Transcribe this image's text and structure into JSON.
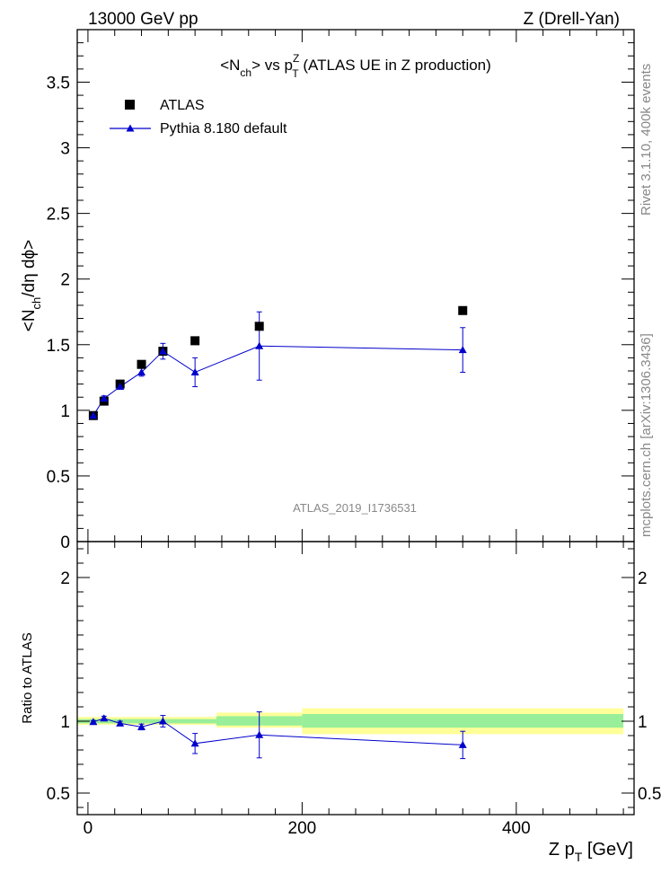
{
  "header": {
    "left": "13000 GeV pp",
    "right": "Z (Drell-Yan)"
  },
  "side_labels": {
    "rivet": "Rivet 3.1.10,  400k events",
    "mcplots": "mcplots.cern.ch [arXiv:1306.3436]"
  },
  "watermark": "ATLAS_2019_I1736531",
  "colors": {
    "data_marker": "#000000",
    "mc_line": "#0000cc",
    "band_outer": "#ffff99",
    "band_inner": "#99ee99"
  },
  "chart_data": [
    {
      "type": "scatter",
      "title_parts": {
        "a": "<N",
        "a_sub": "ch",
        "b": "> vs p",
        "b_sup": "Z",
        "b_sub": "T",
        "c": " (ATLAS UE in Z production)"
      },
      "ylabel_parts": {
        "a": "<N",
        "a_sub": "ch",
        "b": "/dη dϕ>"
      },
      "xlim": [
        -10,
        510
      ],
      "ylim": [
        0,
        3.9
      ],
      "ytick_labels": [
        "0",
        "0.5",
        "1",
        "1.5",
        "2",
        "2.5",
        "3",
        "3.5"
      ],
      "legend_position": "top-left",
      "series": [
        {
          "name": "ATLAS",
          "marker": "square",
          "x": [
            5,
            15,
            30,
            50,
            70,
            100,
            160,
            350
          ],
          "y": [
            0.96,
            1.07,
            1.2,
            1.35,
            1.45,
            1.53,
            1.64,
            1.76
          ]
        },
        {
          "name": "Pythia 8.180 default",
          "marker": "triangle",
          "x": [
            5,
            15,
            30,
            50,
            70,
            100,
            160,
            350
          ],
          "y": [
            0.96,
            1.09,
            1.18,
            1.29,
            1.45,
            1.29,
            1.49,
            1.46
          ],
          "err_low": [
            0.01,
            0.02,
            0.02,
            0.03,
            0.06,
            0.11,
            0.26,
            0.17
          ],
          "err_high": [
            0.01,
            0.02,
            0.02,
            0.03,
            0.06,
            0.11,
            0.26,
            0.17
          ]
        }
      ]
    },
    {
      "type": "scatter",
      "ylabel": "Ratio to ATLAS",
      "xlabel_parts": {
        "a": "Z p",
        "a_sub": "T",
        "b": " [GeV]"
      },
      "xlim": [
        -10,
        510
      ],
      "ylim": [
        0.35,
        2.25
      ],
      "ytick_labels": [
        "0.5",
        "1",
        "2"
      ],
      "xtick_labels": [
        "0",
        "200",
        "400"
      ],
      "bands": [
        {
          "x0": -10,
          "x1": 120,
          "outer": [
            0.975,
            1.03
          ],
          "inner": [
            0.985,
            1.015
          ]
        },
        {
          "x0": 120,
          "x1": 200,
          "outer": [
            0.955,
            1.06
          ],
          "inner": [
            0.97,
            1.035
          ]
        },
        {
          "x0": 200,
          "x1": 500,
          "outer": [
            0.91,
            1.09
          ],
          "inner": [
            0.955,
            1.05
          ]
        }
      ],
      "series": [
        {
          "name": "Pythia 8.180 default",
          "marker": "triangle",
          "x": [
            5,
            15,
            30,
            50,
            70,
            100,
            160,
            350
          ],
          "y": [
            0.995,
            1.02,
            0.985,
            0.96,
            1.0,
            0.845,
            0.905,
            0.835
          ],
          "err_low": [
            0.01,
            0.015,
            0.015,
            0.02,
            0.04,
            0.07,
            0.16,
            0.095
          ],
          "err_high": [
            0.01,
            0.015,
            0.015,
            0.02,
            0.04,
            0.07,
            0.16,
            0.095
          ]
        }
      ]
    }
  ]
}
